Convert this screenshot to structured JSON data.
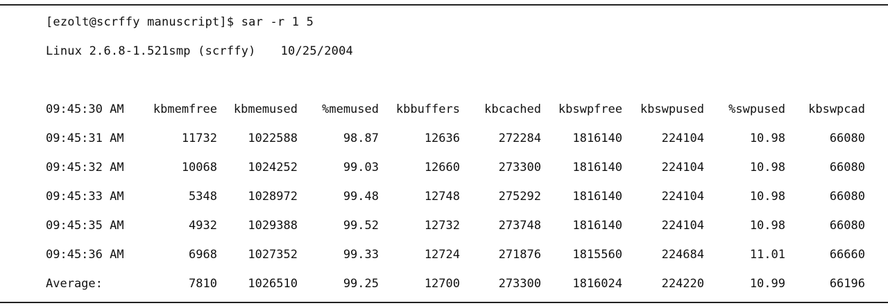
{
  "terminal": {
    "command_line": "[ezolt@scrffy manuscript]$ sar -r 1 5",
    "system_info": "Linux 2.6.8-1.521smp (scrffy)",
    "system_date": "10/25/2004"
  },
  "table": {
    "header": {
      "time": "09:45:30 AM",
      "columns": [
        "kbmemfree",
        "kbmemused",
        "%memused",
        "kbbuffers",
        "kbcached",
        "kbswpfree",
        "kbswpused",
        "%swpused",
        "kbswpcad"
      ]
    },
    "rows": [
      {
        "time": "09:45:31 AM",
        "values": [
          "11732",
          "1022588",
          "98.87",
          "12636",
          "272284",
          "1816140",
          "224104",
          "10.98",
          "66080"
        ]
      },
      {
        "time": "09:45:32 AM",
        "values": [
          "10068",
          "1024252",
          "99.03",
          "12660",
          "273300",
          "1816140",
          "224104",
          "10.98",
          "66080"
        ]
      },
      {
        "time": "09:45:33 AM",
        "values": [
          "5348",
          "1028972",
          "99.48",
          "12748",
          "275292",
          "1816140",
          "224104",
          "10.98",
          "66080"
        ]
      },
      {
        "time": "09:45:35 AM",
        "values": [
          "4932",
          "1029388",
          "99.52",
          "12732",
          "273748",
          "1816140",
          "224104",
          "10.98",
          "66080"
        ]
      },
      {
        "time": "09:45:36 AM",
        "values": [
          "6968",
          "1027352",
          "99.33",
          "12724",
          "271876",
          "1815560",
          "224684",
          "11.01",
          "66660"
        ]
      },
      {
        "time": "Average:",
        "values": [
          "7810",
          "1026510",
          "99.25",
          "12700",
          "273300",
          "1816024",
          "224220",
          "10.99",
          "66196"
        ]
      }
    ]
  }
}
